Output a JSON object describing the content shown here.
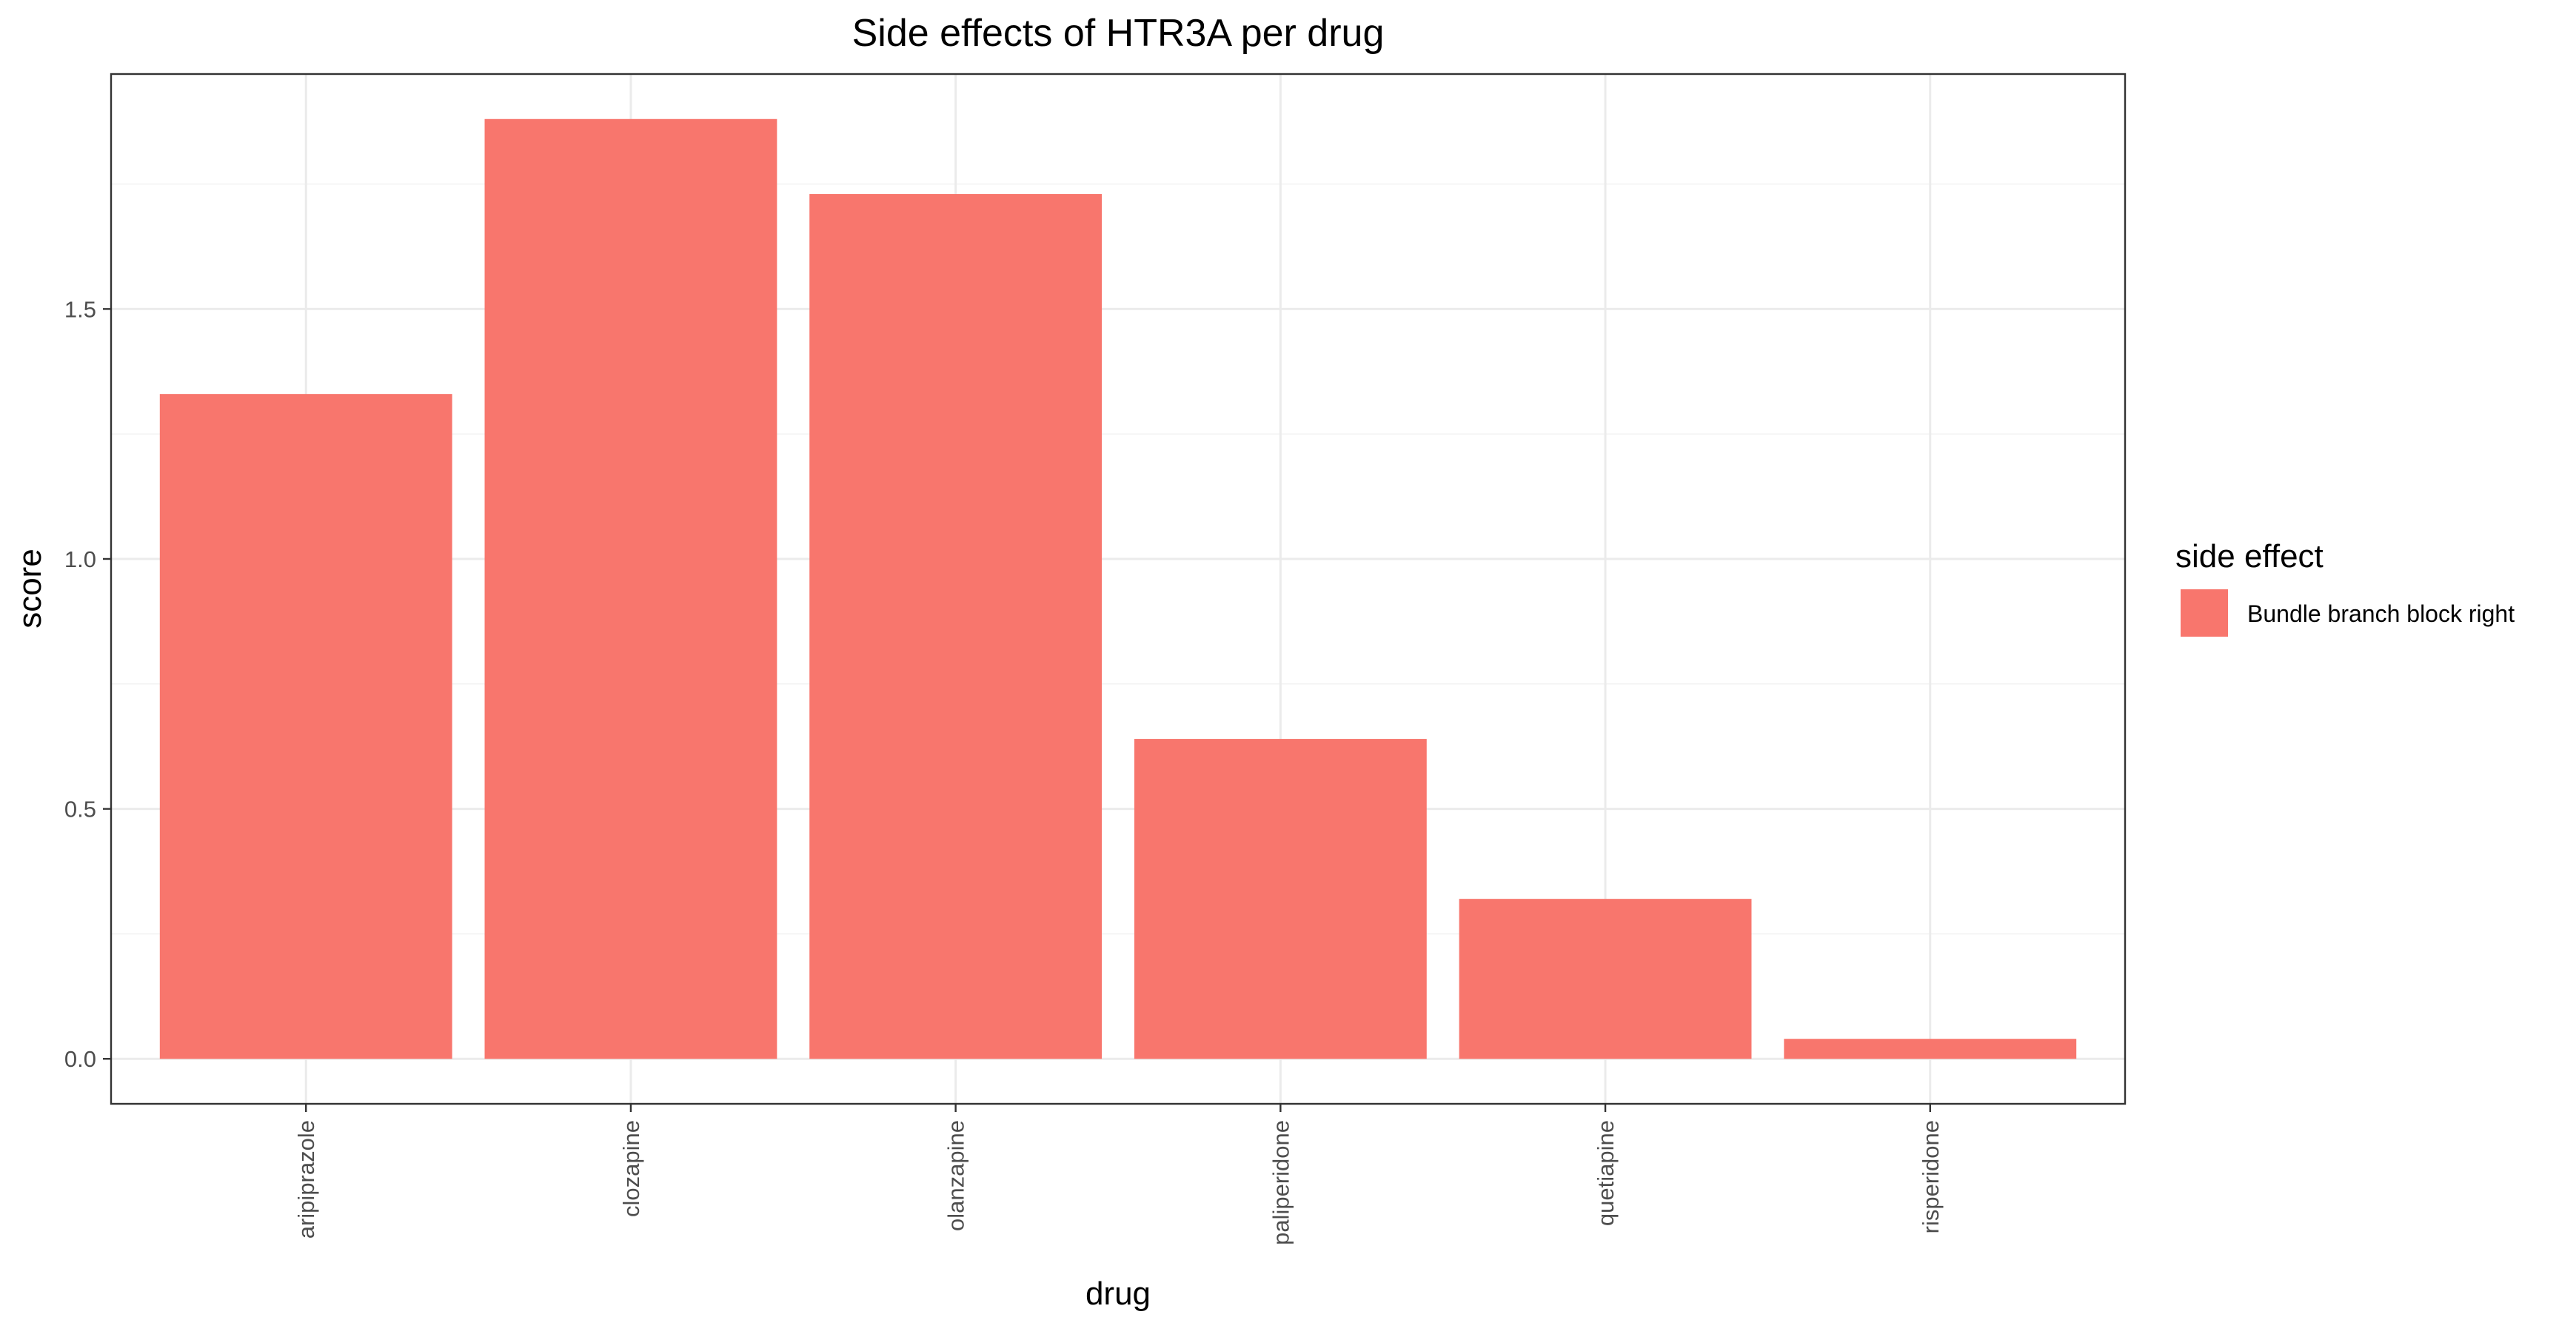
{
  "chart_data": {
    "type": "bar",
    "title": "Side effects of HTR3A per drug",
    "xlabel": "drug",
    "ylabel": "score",
    "categories": [
      "aripiprazole",
      "clozapine",
      "olanzapine",
      "paliperidone",
      "quetiapine",
      "risperidone"
    ],
    "series": [
      {
        "name": "Bundle branch block right",
        "values": [
          1.33,
          1.88,
          1.73,
          0.64,
          0.32,
          0.04
        ],
        "color": "#F8766D"
      }
    ],
    "ylim": [
      -0.09,
      1.97
    ],
    "yticks": [
      0.0,
      0.5,
      1.0,
      1.5
    ],
    "ytick_labels": [
      "0.0",
      "0.5",
      "1.0",
      "1.5"
    ],
    "grid": true,
    "legend": {
      "title": "side effect",
      "placement": "right"
    }
  }
}
